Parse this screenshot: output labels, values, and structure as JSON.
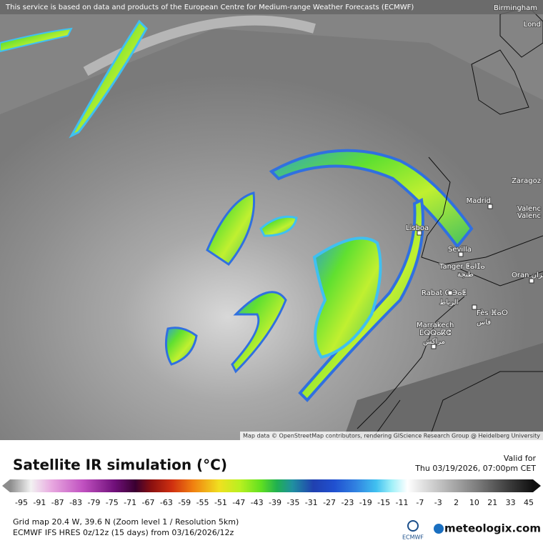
{
  "header": {
    "attribution": "This service is based on data and products of the European Centre for Medium-range Weather Forecasts (ECMWF)"
  },
  "map": {
    "cities": [
      {
        "label": "Birmingham"
      },
      {
        "label": "Lond"
      },
      {
        "label": "Zaragoz"
      },
      {
        "label": "Madrid"
      },
      {
        "label": "Valenc"
      },
      {
        "label": "Valenc"
      },
      {
        "label": "Lisboa"
      },
      {
        "label": "Sevilla"
      },
      {
        "label": "Tanger ⵟⴰⵏⵊⴰ"
      },
      {
        "label": "طنجة"
      },
      {
        "label": "Oran وهران"
      },
      {
        "label": "Rabat ⵔⴱⴰⵟ"
      },
      {
        "label": "الرباط"
      },
      {
        "label": "Fès ⴼⴰⵙ"
      },
      {
        "label": "فاس"
      },
      {
        "label": "Marrakech"
      },
      {
        "label": "ⵎⵕⵕⴰⴽⵛ"
      },
      {
        "label": "مراكش"
      }
    ],
    "credit": "Map data © OpenStreetMap contributors, rendering GIScience Research Group @ Heidelberg University"
  },
  "legend": {
    "title": "Satellite IR simulation (°C)",
    "valid_label": "Valid for",
    "valid_time": "Thu 03/19/2026, 07:00pm CET",
    "ticks": [
      -95,
      -91,
      -87,
      -83,
      -79,
      -75,
      -71,
      -67,
      -63,
      -59,
      -55,
      -51,
      -47,
      -43,
      -39,
      -35,
      -31,
      -27,
      -23,
      -19,
      -15,
      -11,
      -7,
      -3,
      2,
      10,
      21,
      33,
      45
    ]
  },
  "footer": {
    "grid": "Grid map 20.4 W, 39.6 N (Zoom level 1 / Resolution 5km)",
    "model": "ECMWF IFS HRES 0z/12z (15 days) from 03/16/2026/12z",
    "ecmwf_logo": "ECMWF",
    "brand": "meteologix.com"
  }
}
